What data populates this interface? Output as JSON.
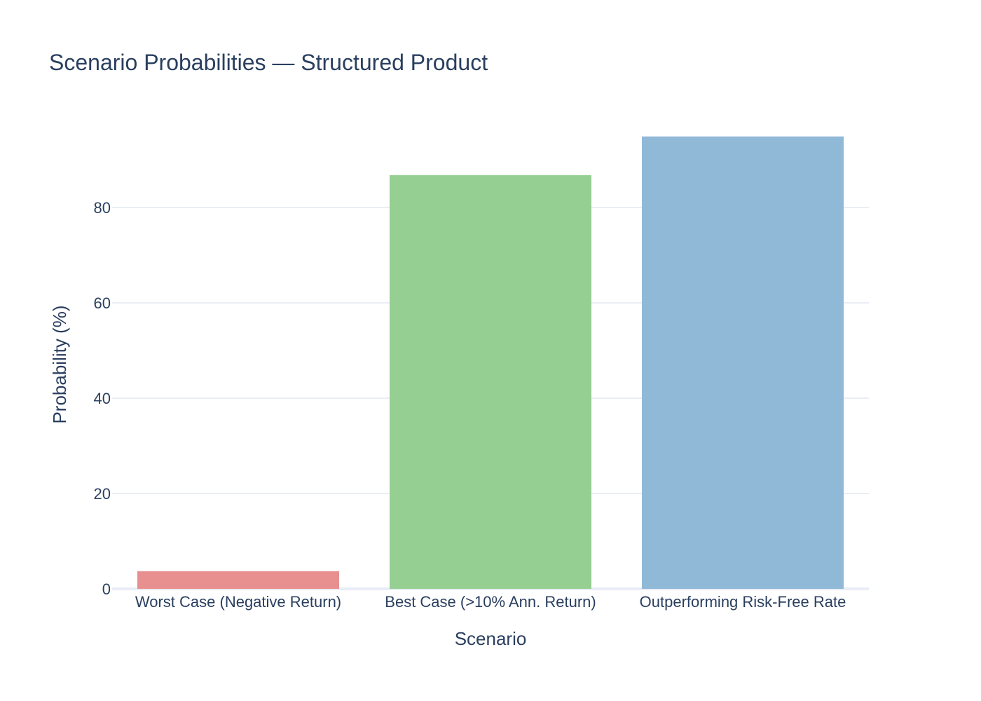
{
  "chart_data": {
    "type": "bar",
    "title": "Scenario Probabilities — Structured Product",
    "xlabel": "Scenario",
    "ylabel": "Probability (%)",
    "categories": [
      "Worst Case (Negative Return)",
      "Best Case (>10% Ann. Return)",
      "Outperforming Risk-Free Rate"
    ],
    "values": [
      3.7,
      86.8,
      94.9
    ],
    "colors": [
      "#e8908f",
      "#95cf92",
      "#90b9d8"
    ],
    "ylim": [
      0,
      100
    ],
    "yticks": [
      0,
      20,
      40,
      60,
      80
    ],
    "grid": true,
    "legend": "none"
  }
}
